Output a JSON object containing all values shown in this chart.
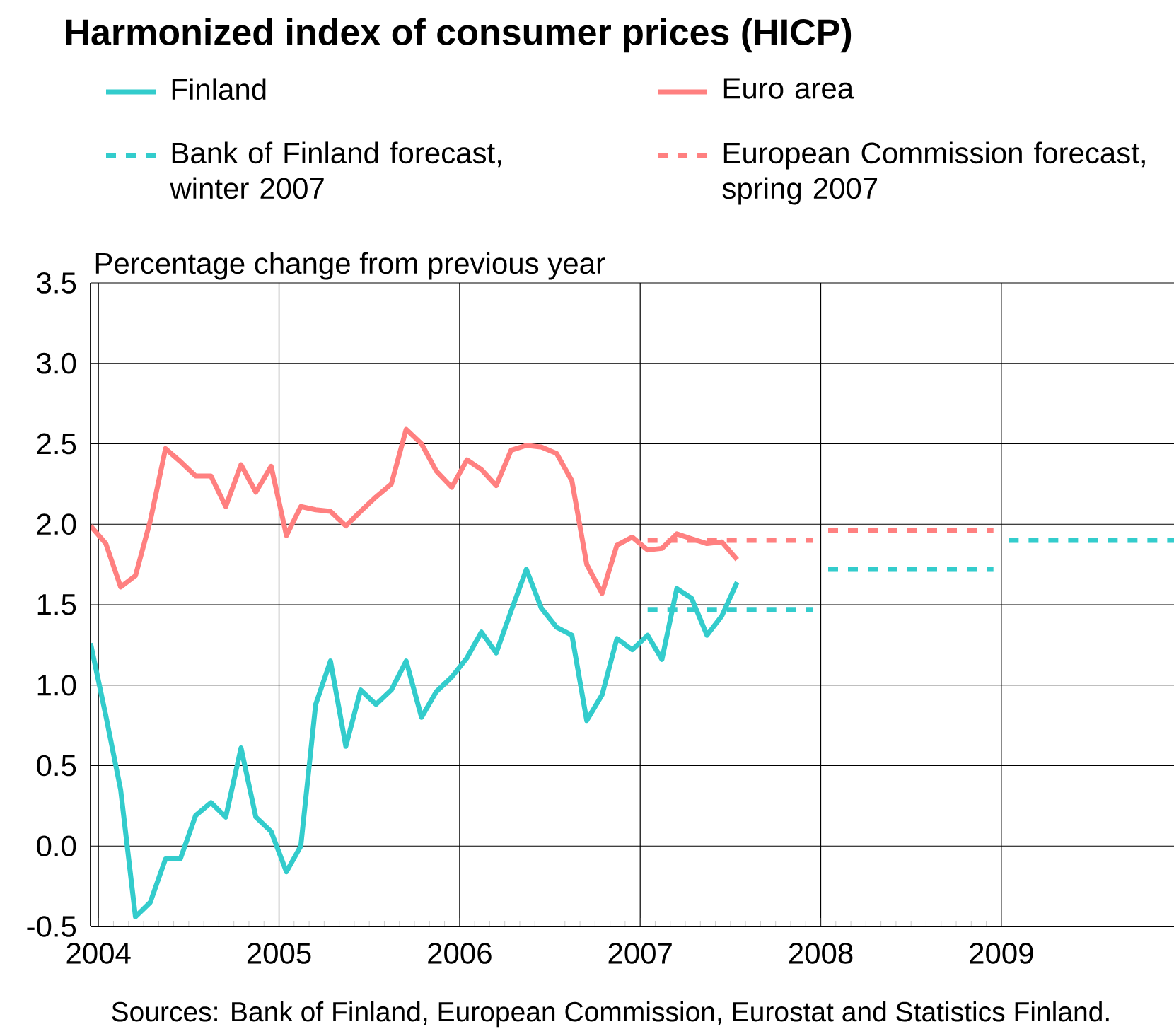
{
  "chart_data": {
    "type": "line",
    "title": "Harmonized index of consumer prices (HICP)",
    "ylabel": "Percentage change from previous year",
    "annotations": [
      "Sources: Bank of Finland, European Commission, Eurostat and Statistics Finland."
    ],
    "x": [
      "2003-12-16",
      "2004-01-16",
      "2004-02-15",
      "2004-03-16",
      "2004-04-15",
      "2004-05-16",
      "2004-06-15",
      "2004-07-16",
      "2004-08-16",
      "2004-09-15",
      "2004-10-16",
      "2004-11-15",
      "2004-12-16",
      "2005-01-16",
      "2005-02-14",
      "2005-03-16",
      "2005-04-15",
      "2005-05-16",
      "2005-06-15",
      "2005-07-16",
      "2005-08-16",
      "2005-09-15",
      "2005-10-16",
      "2005-11-15",
      "2005-12-16",
      "2006-01-16",
      "2006-02-14",
      "2006-03-16",
      "2006-04-15",
      "2006-05-16",
      "2006-06-15",
      "2006-07-16",
      "2006-08-16",
      "2006-09-15",
      "2006-10-16",
      "2006-11-15",
      "2006-12-16",
      "2007-01-16",
      "2007-02-14",
      "2007-03-16",
      "2007-04-15",
      "2007-05-16",
      "2007-06-15",
      "2007-07-16"
    ],
    "series": [
      {
        "name": "Finland",
        "color": "#33cccc",
        "values": [
          1.26,
          0.81,
          0.35,
          -0.44,
          -0.35,
          -0.08,
          -0.08,
          0.19,
          0.27,
          0.18,
          0.61,
          0.18,
          0.09,
          -0.16,
          0.0,
          0.88,
          1.15,
          0.62,
          0.97,
          0.88,
          0.97,
          1.15,
          0.8,
          0.96,
          1.05,
          1.17,
          1.33,
          1.2,
          1.46,
          1.72,
          1.48,
          1.36,
          1.31,
          0.78,
          0.94,
          1.29,
          1.22,
          1.31,
          1.16,
          1.6,
          1.54,
          1.31,
          1.43,
          1.64
        ]
      },
      {
        "name": "Euro area",
        "color": "#ff8080",
        "values": [
          1.99,
          1.88,
          1.61,
          1.68,
          2.02,
          2.47,
          2.39,
          2.3,
          2.3,
          2.11,
          2.37,
          2.2,
          2.36,
          1.93,
          2.11,
          2.09,
          2.08,
          1.99,
          2.08,
          2.17,
          2.25,
          2.59,
          2.5,
          2.33,
          2.23,
          2.4,
          2.34,
          2.24,
          2.46,
          2.49,
          2.48,
          2.44,
          2.27,
          1.75,
          1.57,
          1.87,
          1.92,
          1.84,
          1.85,
          1.94,
          1.91,
          1.88,
          1.89,
          1.78
        ]
      },
      {
        "name": "Bank of Finland forecast, winter 2007",
        "color": "#33cccc",
        "line_style": "dashed",
        "x": [
          "2007-01-16",
          "2007-12-16",
          "2008-01-01",
          "2008-01-16",
          "2008-12-16",
          "2009-01-01",
          "2009-01-16",
          "2009-12-16"
        ],
        "values": [
          1.47,
          1.47,
          null,
          1.72,
          1.72,
          null,
          1.9,
          1.9
        ]
      },
      {
        "name": "European Commission forecast, spring 2007",
        "color": "#ff8080",
        "line_style": "dashed",
        "x": [
          "2007-01-16",
          "2007-12-16",
          "2008-01-01",
          "2008-01-16",
          "2008-12-16"
        ],
        "values": [
          1.9,
          1.9,
          null,
          1.96,
          1.96
        ]
      }
    ],
    "xlim": [
      "2003-12-16",
      "2009-12-16"
    ],
    "xticks": [
      {
        "value": "2004-01-01",
        "label": "2004"
      },
      {
        "value": "2005-01-01",
        "label": "2005"
      },
      {
        "value": "2006-01-01",
        "label": "2006"
      },
      {
        "value": "2007-01-01",
        "label": "2007"
      },
      {
        "value": "2008-01-01",
        "label": "2008"
      },
      {
        "value": "2009-01-01",
        "label": "2009"
      }
    ],
    "ylim": [
      -0.5,
      3.5
    ],
    "yticks": [
      -0.5,
      {
        "value": 0,
        "label": "0.0"
      },
      0.5,
      {
        "value": 1,
        "label": "1.0"
      },
      1.5,
      {
        "value": 2,
        "label": "2.0"
      },
      2.5,
      {
        "value": 3,
        "label": "3.0"
      },
      3.5
    ],
    "grid": true,
    "legend": "top",
    "marker": "none",
    "line_style": "solid"
  }
}
